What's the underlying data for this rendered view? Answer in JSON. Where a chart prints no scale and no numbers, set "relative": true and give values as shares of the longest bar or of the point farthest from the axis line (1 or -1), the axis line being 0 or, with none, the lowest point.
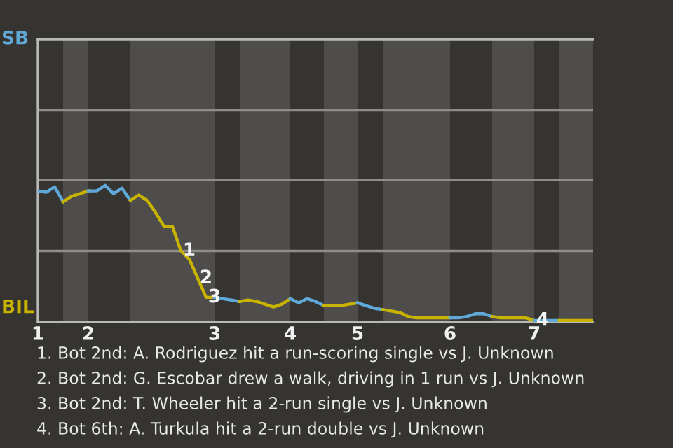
{
  "chart_data": {
    "type": "line",
    "relative": true,
    "categories": [
      "1",
      null,
      null,
      null,
      null,
      null,
      "2",
      null,
      null,
      null,
      null,
      null,
      null,
      null,
      null,
      null,
      null,
      null,
      null,
      null,
      null,
      "3",
      null,
      null,
      null,
      null,
      null,
      null,
      null,
      null,
      "4",
      null,
      null,
      null,
      null,
      null,
      null,
      null,
      "5",
      null,
      null,
      null,
      null,
      null,
      null,
      null,
      null,
      null,
      null,
      "6",
      null,
      null,
      null,
      null,
      null,
      null,
      null,
      null,
      null,
      "7",
      null,
      null,
      null,
      null,
      null,
      null,
      null
    ],
    "ref_lines": [
      {
        "axis": "y",
        "value": 0.52,
        "color": "#8e8d8a"
      },
      {
        "axis": "y",
        "value": 1.04,
        "color": "#8e8d8a"
      },
      {
        "axis": "y",
        "value": 1.55,
        "color": "#8e8d8a"
      }
    ],
    "marker": "none",
    "line_style": "solid",
    "series": [
      {
        "color": "#5fa8d8",
        "values": [
          0.96,
          0.95,
          0.99,
          0.88,
          null,
          null,
          null,
          null,
          null,
          null,
          null,
          null,
          null,
          null,
          null,
          null,
          null,
          null,
          null,
          null,
          null,
          null,
          null,
          null,
          null,
          null,
          null,
          null,
          null,
          null,
          null,
          null,
          null,
          null,
          null,
          null,
          null,
          null,
          null,
          null,
          null,
          null,
          null,
          null,
          null,
          null,
          null,
          null,
          null,
          null,
          null,
          null,
          null,
          null,
          null,
          null,
          null,
          null,
          null,
          null,
          null,
          null,
          null,
          null,
          null,
          null,
          null
        ]
      },
      {
        "color": "#c8b400",
        "values": [
          null,
          null,
          null,
          0.88,
          0.92,
          0.94,
          0.96,
          null,
          null,
          null,
          null,
          null,
          null,
          null,
          null,
          null,
          null,
          null,
          null,
          null,
          null,
          null,
          null,
          null,
          null,
          null,
          null,
          null,
          null,
          null,
          null,
          null,
          null,
          null,
          null,
          null,
          null,
          null,
          null,
          null,
          null,
          null,
          null,
          null,
          null,
          null,
          null,
          null,
          null,
          null,
          null,
          null,
          null,
          null,
          null,
          null,
          null,
          null,
          null,
          null,
          null,
          null,
          null,
          null,
          null,
          null,
          null
        ]
      },
      {
        "color": "#5fa8d8",
        "values": [
          null,
          null,
          null,
          null,
          null,
          null,
          0.96,
          0.96,
          1.0,
          0.94,
          0.98,
          0.89,
          null,
          null,
          null,
          null,
          null,
          null,
          null,
          null,
          null,
          null,
          null,
          null,
          null,
          null,
          null,
          null,
          null,
          null,
          null,
          null,
          null,
          null,
          null,
          null,
          null,
          null,
          null,
          null,
          null,
          null,
          null,
          null,
          null,
          null,
          null,
          null,
          null,
          null,
          null,
          null,
          null,
          null,
          null,
          null,
          null,
          null,
          null,
          null,
          null,
          null,
          null,
          null,
          null,
          null,
          null
        ]
      },
      {
        "color": "#c8b400",
        "values": [
          null,
          null,
          null,
          null,
          null,
          null,
          null,
          null,
          null,
          null,
          null,
          0.89,
          0.93,
          0.89,
          0.8,
          0.7,
          0.7,
          0.52,
          0.46,
          0.32,
          0.18,
          0.18,
          null,
          null,
          null,
          null,
          null,
          null,
          null,
          null,
          null,
          null,
          null,
          null,
          null,
          null,
          null,
          null,
          null,
          null,
          null,
          null,
          null,
          null,
          null,
          null,
          null,
          null,
          null,
          null,
          null,
          null,
          null,
          null,
          null,
          null,
          null,
          null,
          null,
          null,
          null,
          null,
          null,
          null,
          null,
          null,
          null
        ]
      },
      {
        "color": "#5fa8d8",
        "values": [
          null,
          null,
          null,
          null,
          null,
          null,
          null,
          null,
          null,
          null,
          null,
          null,
          null,
          null,
          null,
          null,
          null,
          null,
          null,
          null,
          null,
          0.18,
          0.17,
          0.16,
          0.15,
          null,
          null,
          null,
          null,
          null,
          null,
          null,
          null,
          null,
          null,
          null,
          null,
          null,
          null,
          null,
          null,
          null,
          null,
          null,
          null,
          null,
          null,
          null,
          null,
          null,
          null,
          null,
          null,
          null,
          null,
          null,
          null,
          null,
          null,
          null,
          null,
          null,
          null,
          null,
          null,
          null,
          null
        ]
      },
      {
        "color": "#c8b400",
        "values": [
          null,
          null,
          null,
          null,
          null,
          null,
          null,
          null,
          null,
          null,
          null,
          null,
          null,
          null,
          null,
          null,
          null,
          null,
          null,
          null,
          null,
          null,
          null,
          null,
          0.15,
          0.16,
          0.15,
          0.13,
          0.11,
          0.13,
          0.17,
          null,
          null,
          null,
          null,
          null,
          null,
          null,
          null,
          null,
          null,
          null,
          null,
          null,
          null,
          null,
          null,
          null,
          null,
          null,
          null,
          null,
          null,
          null,
          null,
          null,
          null,
          null,
          null,
          null,
          null,
          null,
          null,
          null,
          null,
          null,
          null
        ]
      },
      {
        "color": "#5fa8d8",
        "values": [
          null,
          null,
          null,
          null,
          null,
          null,
          null,
          null,
          null,
          null,
          null,
          null,
          null,
          null,
          null,
          null,
          null,
          null,
          null,
          null,
          null,
          null,
          null,
          null,
          null,
          null,
          null,
          null,
          null,
          null,
          0.17,
          0.14,
          0.17,
          0.15,
          0.12,
          null,
          null,
          null,
          null,
          null,
          null,
          null,
          null,
          null,
          null,
          null,
          null,
          null,
          null,
          null,
          null,
          null,
          null,
          null,
          null,
          null,
          null,
          null,
          null,
          null,
          null,
          null,
          null,
          null,
          null,
          null,
          null
        ]
      },
      {
        "color": "#c8b400",
        "values": [
          null,
          null,
          null,
          null,
          null,
          null,
          null,
          null,
          null,
          null,
          null,
          null,
          null,
          null,
          null,
          null,
          null,
          null,
          null,
          null,
          null,
          null,
          null,
          null,
          null,
          null,
          null,
          null,
          null,
          null,
          null,
          null,
          null,
          null,
          0.12,
          0.12,
          0.12,
          0.13,
          0.14,
          null,
          null,
          null,
          null,
          null,
          null,
          null,
          null,
          null,
          null,
          null,
          null,
          null,
          null,
          null,
          null,
          null,
          null,
          null,
          null,
          null,
          null,
          null,
          null,
          null,
          null,
          null,
          null
        ]
      },
      {
        "color": "#5fa8d8",
        "values": [
          null,
          null,
          null,
          null,
          null,
          null,
          null,
          null,
          null,
          null,
          null,
          null,
          null,
          null,
          null,
          null,
          null,
          null,
          null,
          null,
          null,
          null,
          null,
          null,
          null,
          null,
          null,
          null,
          null,
          null,
          null,
          null,
          null,
          null,
          null,
          null,
          null,
          null,
          0.14,
          0.12,
          0.1,
          0.09,
          null,
          null,
          null,
          null,
          null,
          null,
          null,
          null,
          null,
          null,
          null,
          null,
          null,
          null,
          null,
          null,
          null,
          null,
          null,
          null,
          null,
          null,
          null,
          null,
          null
        ]
      },
      {
        "color": "#c8b400",
        "values": [
          null,
          null,
          null,
          null,
          null,
          null,
          null,
          null,
          null,
          null,
          null,
          null,
          null,
          null,
          null,
          null,
          null,
          null,
          null,
          null,
          null,
          null,
          null,
          null,
          null,
          null,
          null,
          null,
          null,
          null,
          null,
          null,
          null,
          null,
          null,
          null,
          null,
          null,
          null,
          null,
          null,
          0.09,
          0.08,
          0.07,
          0.04,
          0.03,
          0.03,
          0.03,
          0.03,
          0.03,
          null,
          null,
          null,
          null,
          null,
          null,
          null,
          null,
          null,
          null,
          null,
          null,
          null,
          null,
          null,
          null,
          null
        ]
      },
      {
        "color": "#5fa8d8",
        "values": [
          null,
          null,
          null,
          null,
          null,
          null,
          null,
          null,
          null,
          null,
          null,
          null,
          null,
          null,
          null,
          null,
          null,
          null,
          null,
          null,
          null,
          null,
          null,
          null,
          null,
          null,
          null,
          null,
          null,
          null,
          null,
          null,
          null,
          null,
          null,
          null,
          null,
          null,
          null,
          null,
          null,
          null,
          null,
          null,
          null,
          null,
          null,
          null,
          null,
          0.03,
          0.03,
          0.04,
          0.06,
          0.06,
          0.04,
          null,
          null,
          null,
          null,
          null,
          null,
          null,
          null,
          null,
          null,
          null,
          null
        ]
      },
      {
        "color": "#c8b400",
        "values": [
          null,
          null,
          null,
          null,
          null,
          null,
          null,
          null,
          null,
          null,
          null,
          null,
          null,
          null,
          null,
          null,
          null,
          null,
          null,
          null,
          null,
          null,
          null,
          null,
          null,
          null,
          null,
          null,
          null,
          null,
          null,
          null,
          null,
          null,
          null,
          null,
          null,
          null,
          null,
          null,
          null,
          null,
          null,
          null,
          null,
          null,
          null,
          null,
          null,
          null,
          null,
          null,
          null,
          null,
          0.04,
          0.03,
          0.03,
          0.03,
          0.03,
          0.01,
          null,
          null,
          null,
          null,
          null,
          null,
          null
        ]
      },
      {
        "color": "#5fa8d8",
        "values": [
          null,
          null,
          null,
          null,
          null,
          null,
          null,
          null,
          null,
          null,
          null,
          null,
          null,
          null,
          null,
          null,
          null,
          null,
          null,
          null,
          null,
          null,
          null,
          null,
          null,
          null,
          null,
          null,
          null,
          null,
          null,
          null,
          null,
          null,
          null,
          null,
          null,
          null,
          null,
          null,
          null,
          null,
          null,
          null,
          null,
          null,
          null,
          null,
          null,
          null,
          null,
          null,
          null,
          null,
          null,
          null,
          null,
          null,
          null,
          0.01,
          0.01,
          0.01,
          0.01,
          null,
          null,
          null,
          null
        ]
      },
      {
        "color": "#c8b400",
        "values": [
          null,
          null,
          null,
          null,
          null,
          null,
          null,
          null,
          null,
          null,
          null,
          null,
          null,
          null,
          null,
          null,
          null,
          null,
          null,
          null,
          null,
          null,
          null,
          null,
          null,
          null,
          null,
          null,
          null,
          null,
          null,
          null,
          null,
          null,
          null,
          null,
          null,
          null,
          null,
          null,
          null,
          null,
          null,
          null,
          null,
          null,
          null,
          null,
          null,
          null,
          null,
          null,
          null,
          null,
          null,
          null,
          null,
          null,
          null,
          null,
          null,
          null,
          0.01,
          0.01,
          0.01,
          0.01,
          0.01
        ]
      }
    ],
    "annotations": [
      {
        "text": "1",
        "y": 0.52
      },
      {
        "text": "2",
        "y": 0.32
      },
      {
        "text": "3",
        "y": 0.18
      },
      {
        "text": "4",
        "y": 0.01
      },
      "SB",
      "BIL",
      "1. Bot 2nd: A. Rodriguez hit a run-scoring single vs J. Unknown",
      "2. Bot 2nd: G. Escobar drew a walk, driving in 1 run vs J. Unknown",
      "3. Bot 2nd: T. Wheeler hit a 2-run single vs J. Unknown",
      "4. Bot 6th: A. Turkula hit a 2-run double vs J. Unknown"
    ]
  }
}
